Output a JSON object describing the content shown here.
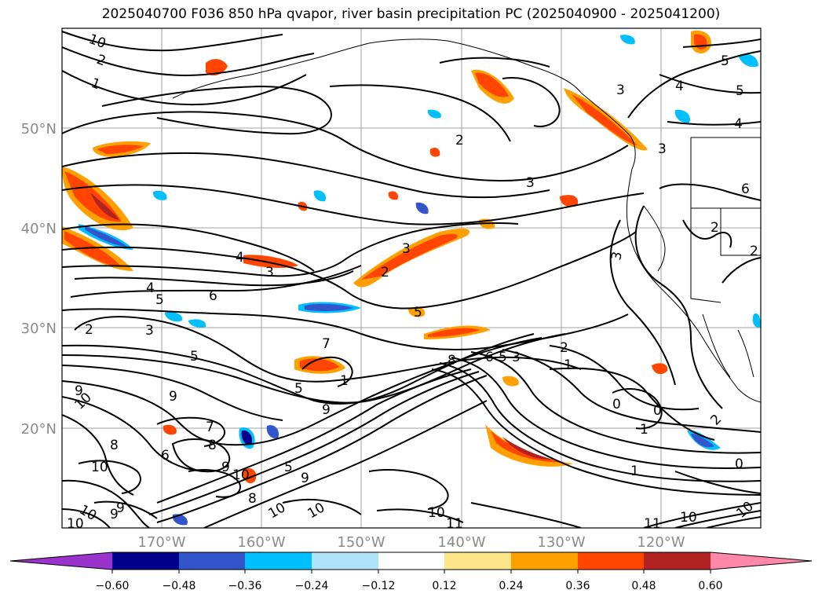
{
  "title": "2025040700 F036 850 hPa qvapor, river basin precipitation PC (2025040900 - 2025041200)",
  "latitude_labels": [
    "50°N",
    "40°N",
    "30°N",
    "20°N"
  ],
  "longitude_labels": [
    "170°W",
    "160°W",
    "150°W",
    "140°W",
    "130°W",
    "120°W"
  ],
  "colorbar": {
    "ticks": [
      "−0.60",
      "−0.48",
      "−0.36",
      "−0.24",
      "−0.12",
      "0.12",
      "0.24",
      "0.36",
      "0.48",
      "0.60"
    ],
    "colors": [
      "#9933cc",
      "#00008b",
      "#3355cc",
      "#00bfff",
      "#aee3fa",
      "#ffffff",
      "#fde68a",
      "#ffa000",
      "#ff4500",
      "#b22222",
      "#ff88aa"
    ]
  },
  "contour_labels": [
    "10",
    "2",
    "1",
    "2",
    "3",
    "5",
    "4",
    "4",
    "5",
    "6",
    "3",
    "2",
    "3",
    "2",
    "3",
    "9",
    "3",
    "4",
    "5",
    "6",
    "3",
    "2",
    "3",
    "2",
    "4",
    "5",
    "5",
    "7",
    "5",
    "1",
    "8",
    "6",
    "5",
    "3",
    "2",
    "1",
    "0",
    "0",
    "1",
    "2",
    "0",
    "1",
    "9",
    "10",
    "9",
    "8",
    "7",
    "6",
    "8",
    "10",
    "9",
    "10",
    "8",
    "9",
    "10",
    "10",
    "5",
    "9",
    "10",
    "10",
    "11",
    "10",
    "11",
    "10",
    "9",
    "10"
  ],
  "shading_colors": {
    "positive_outer": "#ffa000",
    "positive_mid": "#ff4500",
    "positive_inner": "#b22222",
    "negative_outer": "#00bfff",
    "negative_mid": "#3355cc",
    "negative_inner": "#00008b"
  }
}
